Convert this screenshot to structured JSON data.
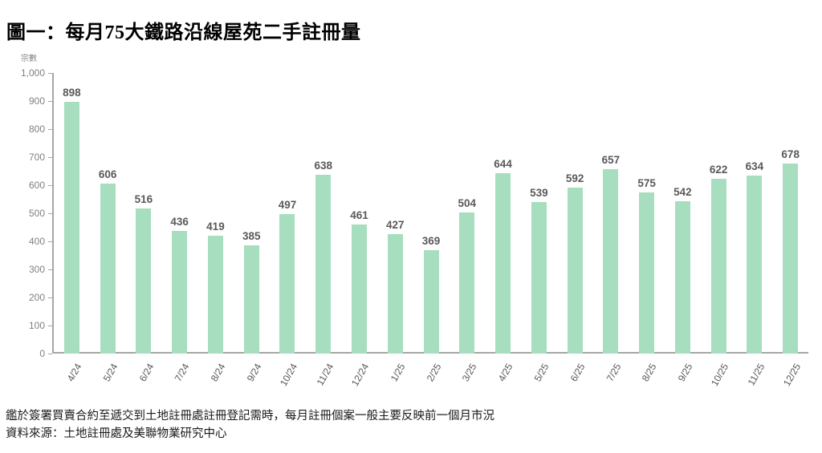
{
  "title": "圖一：每月75大鐵路沿線屋苑二手註冊量",
  "chart_data": {
    "type": "bar",
    "title": "圖一：每月75大鐵路沿線屋苑二手註冊量",
    "ylabel": "宗數",
    "xlabel": "",
    "categories": [
      "4/24",
      "5/24",
      "6/24",
      "7/24",
      "8/24",
      "9/24",
      "10/24",
      "11/24",
      "12/24",
      "1/25",
      "2/25",
      "3/25",
      "4/25",
      "5/25",
      "6/25",
      "7/25",
      "8/25",
      "9/25",
      "10/25",
      "11/25",
      "12/25"
    ],
    "values": [
      898,
      606,
      516,
      436,
      419,
      385,
      497,
      638,
      461,
      427,
      369,
      504,
      644,
      539,
      592,
      657,
      575,
      542,
      622,
      634,
      678
    ],
    "ylim": [
      0,
      1000
    ],
    "ytick_interval": 100,
    "grid": false,
    "legend_position": "none",
    "bar_color": "#a7debf",
    "value_label_color": "#595959",
    "axis_color": "#a6a6a6",
    "tick_label_color": "#808080"
  },
  "footnotes": {
    "line1": "鑑於簽署買賣合約至遞交到土地註冊處註冊登記需時，每月註冊個案一般主要反映前一個月市況",
    "line2": "資料來源：土地註冊處及美聯物業研究中心"
  }
}
